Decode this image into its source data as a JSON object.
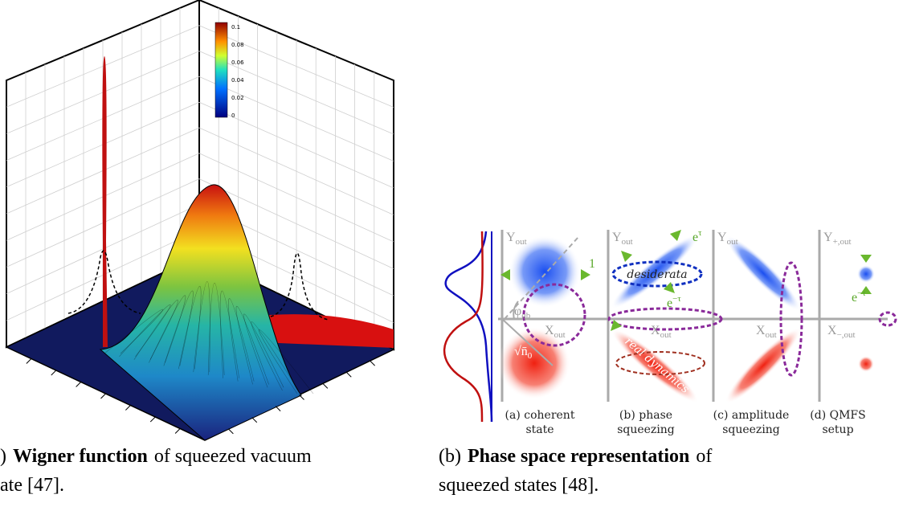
{
  "figure_a": {
    "colorbar_ticks": [
      "0.1",
      "0.08",
      "0.06",
      "0.04",
      "0.02",
      "0"
    ]
  },
  "figure_b": {
    "panels": [
      {
        "y_axis": {
          "main": "Y",
          "sub": "out"
        },
        "x_axis": {
          "main": "X",
          "sub": "out"
        },
        "caption": [
          "(a) coherent",
          "state"
        ]
      },
      {
        "y_axis": {
          "main": "Y",
          "sub": "out"
        },
        "x_axis": {
          "main": "X",
          "sub": "out"
        },
        "caption": [
          "(b) phase",
          "squeezing"
        ]
      },
      {
        "y_axis": {
          "main": "Y",
          "sub": "out"
        },
        "x_axis": {
          "main": "X",
          "sub": "out"
        },
        "caption": [
          "(c) amplitude",
          "squeezing"
        ]
      },
      {
        "y_axis": {
          "main": "Y",
          "sub": "+,out"
        },
        "x_axis": {
          "main": "X",
          "sub": "−,out"
        },
        "caption": [
          "(d) QMFS",
          "setup"
        ]
      }
    ],
    "labels": {
      "one": "1",
      "phi": {
        "main": "φ",
        "sub": "qb"
      },
      "n0": {
        "root": "√",
        "main": "n̄",
        "sub": "0"
      },
      "e_plus": {
        "main": "e",
        "sup": "τ"
      },
      "e_minus": {
        "main": "e",
        "sup": "−τ"
      },
      "e_minus_d": {
        "main": "e",
        "sup": "−τ"
      },
      "desiderata": "desiderata",
      "real_dynamics": "real dynamics"
    }
  },
  "captions": {
    "a": {
      "prefix": ")",
      "bold": "Wigner function",
      "rest": "of squeezed vacuum",
      "line2": "ate [47]."
    },
    "b": {
      "prefix": "(b)",
      "bold": "Phase space representation",
      "rest": "of",
      "line2": "squeezed states [48]."
    }
  }
}
